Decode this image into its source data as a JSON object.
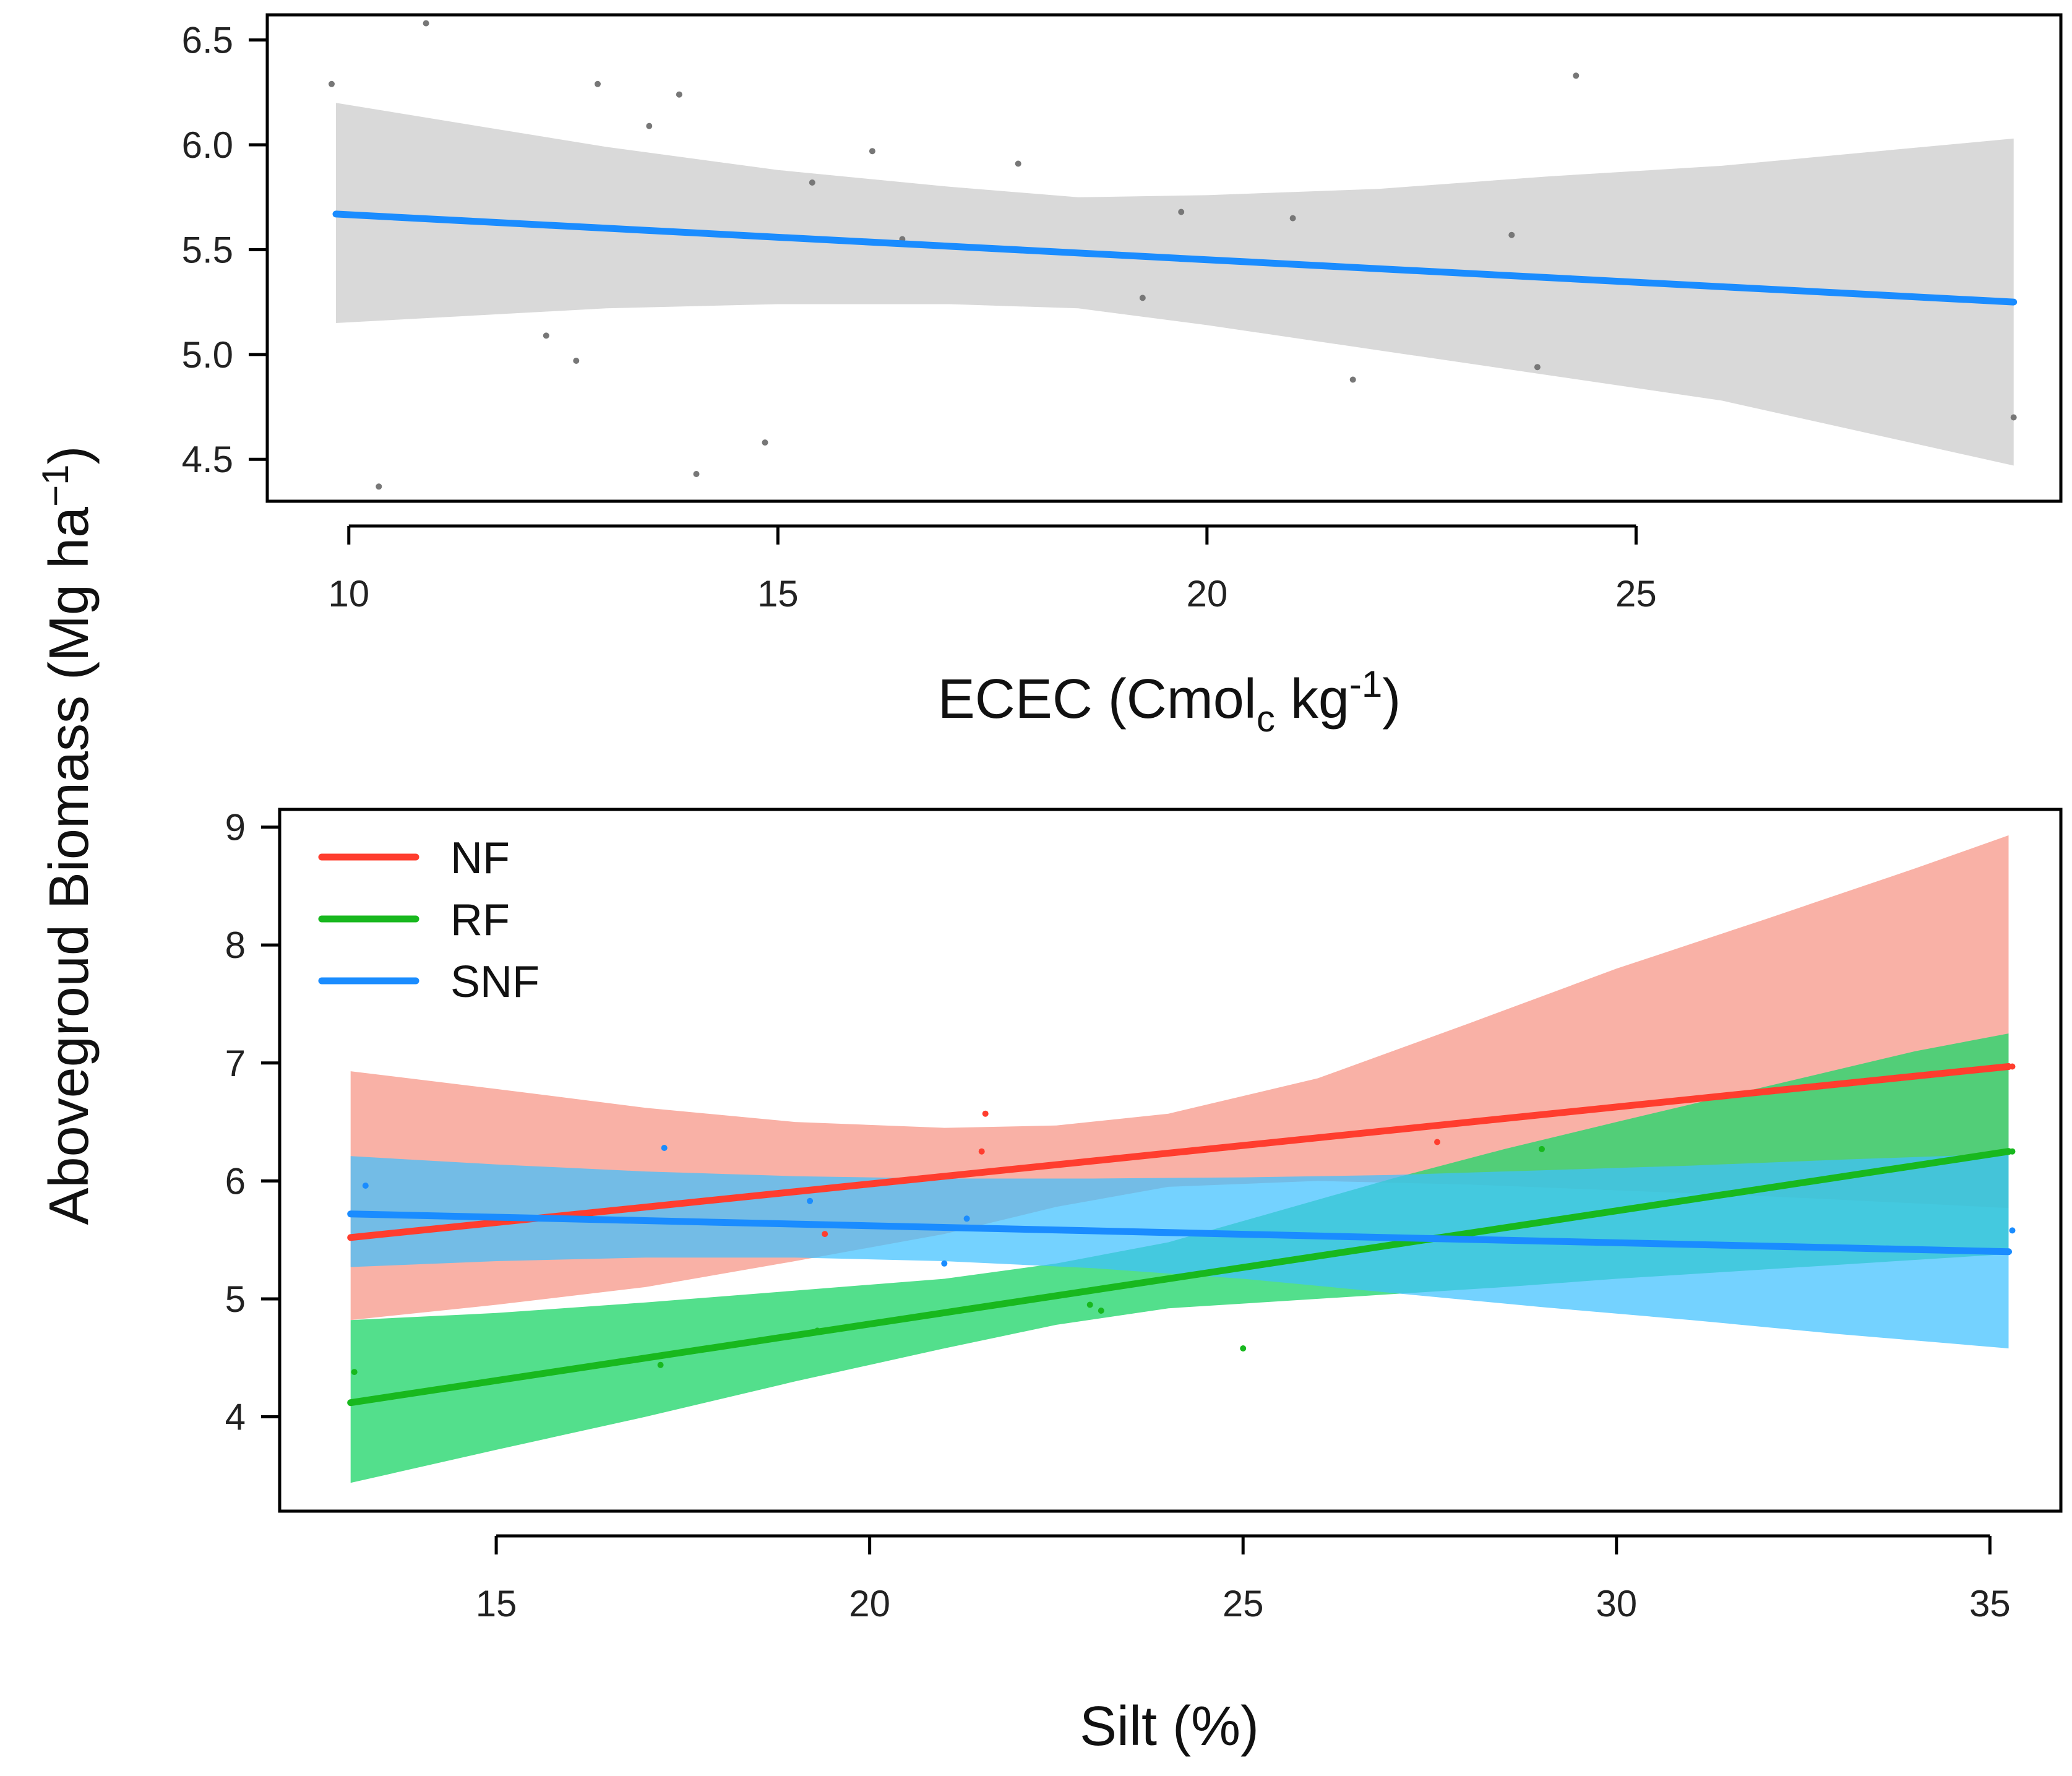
{
  "y_axis_title": {
    "main": "Abovegroud Biomass (Mg ha",
    "sup": "−1",
    "close": ")"
  },
  "colors": {
    "blue": "#1a8cff",
    "red": "#ff3d2e",
    "green": "#18b81e",
    "band_gray": "#d9d9d9",
    "band_red": "#f8a89c",
    "band_green": "#22d66c",
    "band_blue": "#3ec0ff",
    "point_gray": "#777777"
  },
  "chart_data": [
    {
      "type": "scatter",
      "id": "top",
      "title": "",
      "xlabel": {
        "main": "ECEC (Cmol",
        "sub": "c",
        "mid": " kg",
        "sup": "-1",
        "close": ")"
      },
      "ylabel": "Abovegroud Biomass (Mg ha−1)",
      "xlim": [
        9.05,
        29.95
      ],
      "ylim": [
        4.3,
        6.62
      ],
      "xticks": [
        10,
        15,
        20,
        25
      ],
      "yticks": [
        4.5,
        5.0,
        5.5,
        6.0,
        6.5
      ],
      "xtick_labels": [
        "10",
        "15",
        "20",
        "25"
      ],
      "ytick_labels": [
        "4.5",
        "5.0",
        "5.5",
        "6.0",
        "6.5"
      ],
      "series": [
        {
          "name": "ECEC",
          "color": "#1a8cff",
          "fit": {
            "x": [
              9.85,
              29.4
            ],
            "y": [
              5.67,
              5.25
            ]
          },
          "ci": {
            "x": [
              9.85,
              13,
              15,
              17,
              18.5,
              20,
              22,
              24,
              26,
              29.4
            ],
            "upper": [
              6.2,
              5.99,
              5.88,
              5.8,
              5.75,
              5.76,
              5.79,
              5.85,
              5.9,
              6.03
            ],
            "lower": [
              5.15,
              5.22,
              5.24,
              5.24,
              5.22,
              5.14,
              5.02,
              4.9,
              4.78,
              4.47
            ]
          },
          "points": {
            "x": [
              9.8,
              10.35,
              10.9,
              12.3,
              12.65,
              12.9,
              13.5,
              13.85,
              14.05,
              14.85,
              15.4,
              16.1,
              16.45,
              17.8,
              19.25,
              19.7,
              21,
              21.7,
              23.55,
              23.85,
              24.3,
              29.4
            ],
            "y": [
              6.29,
              4.37,
              6.58,
              5.09,
              4.97,
              6.29,
              6.09,
              6.24,
              4.43,
              4.58,
              5.82,
              5.97,
              5.55,
              5.91,
              5.27,
              5.68,
              5.65,
              4.88,
              5.57,
              4.94,
              6.33,
              4.7
            ]
          }
        }
      ]
    },
    {
      "type": "scatter",
      "id": "bottom",
      "title": "",
      "xlabel": "Silt (%)",
      "ylabel": "Abovegroud Biomass (Mg ha−1)",
      "xlim": [
        12.1,
        35.95
      ],
      "ylim": [
        3.2,
        9.15
      ],
      "xticks": [
        15,
        20,
        25,
        30,
        35
      ],
      "yticks": [
        4,
        5,
        6,
        7,
        8,
        9
      ],
      "xtick_labels": [
        "15",
        "20",
        "25",
        "30",
        "35"
      ],
      "ytick_labels": [
        "4",
        "5",
        "6",
        "7",
        "8",
        "9"
      ],
      "legend": {
        "position": "top-left",
        "entries": [
          "NF",
          "RF",
          "SNF"
        ]
      },
      "series": [
        {
          "name": "NF",
          "color": "#ff3d2e",
          "band_color": "#f8a89c",
          "fit": {
            "x": [
              13.05,
              35.25
            ],
            "y": [
              5.52,
              6.97
            ]
          },
          "ci": {
            "x": [
              13.05,
              15,
              17,
              19,
              21,
              22.5,
              24,
              26,
              28,
              30,
              32,
              34,
              35.25
            ],
            "upper": [
              6.93,
              6.78,
              6.62,
              6.5,
              6.45,
              6.47,
              6.57,
              6.87,
              7.33,
              7.8,
              8.22,
              8.65,
              8.93
            ],
            "lower": [
              4.82,
              4.95,
              5.1,
              5.32,
              5.55,
              5.78,
              5.95,
              6.0,
              5.97,
              5.92,
              5.87,
              5.81,
              5.77
            ]
          },
          "points": {
            "x": [
              19.4,
              21.5,
              21.55,
              27.6,
              35.3
            ],
            "y": [
              5.55,
              6.25,
              6.57,
              6.33,
              6.97
            ]
          }
        },
        {
          "name": "RF",
          "color": "#18b81e",
          "band_color": "#22d66c",
          "fit": {
            "x": [
              13.05,
              35.25
            ],
            "y": [
              4.12,
              6.25
            ]
          },
          "ci": {
            "x": [
              13.05,
              15,
              17,
              19,
              21,
              22.5,
              24,
              25.5,
              27,
              28.5,
              30,
              32,
              34,
              35.25
            ],
            "upper": [
              4.82,
              4.88,
              4.97,
              5.07,
              5.17,
              5.3,
              5.48,
              5.75,
              6.02,
              6.27,
              6.5,
              6.8,
              7.1,
              7.25
            ],
            "lower": [
              3.44,
              3.72,
              4.0,
              4.3,
              4.58,
              4.78,
              4.92,
              4.98,
              5.04,
              5.1,
              5.17,
              5.25,
              5.33,
              5.38
            ]
          },
          "points": {
            "x": [
              13.1,
              17.2,
              19.3,
              22.95,
              23.1,
              25,
              29,
              35.3
            ],
            "y": [
              4.38,
              4.44,
              4.73,
              4.95,
              4.9,
              4.58,
              6.27,
              6.25
            ]
          }
        },
        {
          "name": "SNF",
          "color": "#1a8cff",
          "band_color": "#3ec0ff",
          "fit": {
            "x": [
              13.05,
              35.25
            ],
            "y": [
              5.72,
              5.4
            ]
          },
          "ci": {
            "x": [
              13.05,
              15,
              17,
              19,
              21,
              23,
              25,
              27,
              29,
              31,
              33,
              35.25
            ],
            "upper": [
              6.21,
              6.14,
              6.08,
              6.04,
              6.02,
              6.02,
              6.03,
              6.05,
              6.09,
              6.13,
              6.18,
              6.23
            ],
            "lower": [
              5.27,
              5.32,
              5.35,
              5.35,
              5.32,
              5.26,
              5.17,
              5.05,
              4.93,
              4.82,
              4.7,
              4.58
            ]
          },
          "points": {
            "x": [
              13.25,
              17.25,
              19.2,
              21,
              21.3,
              35.3
            ],
            "y": [
              5.96,
              6.28,
              5.83,
              5.3,
              5.68,
              5.58
            ]
          }
        }
      ]
    }
  ]
}
